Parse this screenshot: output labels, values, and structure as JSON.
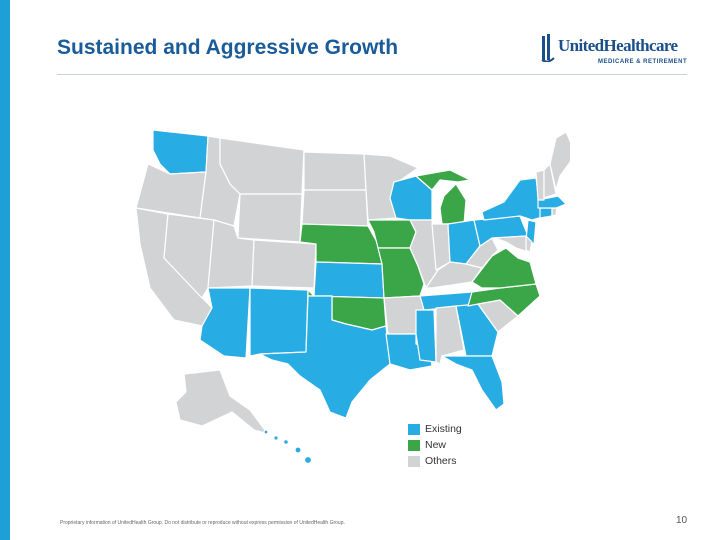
{
  "slide": {
    "title": "Sustained and Aggressive Growth",
    "logo_text": "UnitedHealthcare",
    "logo_subtitle": "MEDICARE & RETIREMENT",
    "footer": "Proprietary information of UnitedHealth Group. Do not distribute or reproduce without express permission of UnitedHealth Group.",
    "page_number": "10"
  },
  "colors": {
    "accent_bar": "#1e9fd8",
    "title": "#1a5b9a",
    "existing": "#27ace3",
    "new": "#3aa648",
    "others": "#d2d3d5"
  },
  "legend": [
    {
      "key": "existing",
      "label": "Existing"
    },
    {
      "key": "new",
      "label": "New"
    },
    {
      "key": "others",
      "label": "Others"
    }
  ],
  "map_data": {
    "states_existing": [
      "WA",
      "KS",
      "AZ",
      "NM",
      "TX",
      "LA",
      "MS",
      "TN",
      "GA",
      "FL",
      "WI",
      "OH",
      "NY",
      "PA",
      "NJ",
      "MA",
      "CT",
      "HI"
    ],
    "states_new": [
      "NE",
      "IA",
      "MO",
      "OK",
      "MI",
      "VA",
      "NC"
    ],
    "states_others": [
      "OR",
      "CA",
      "NV",
      "ID",
      "MT",
      "WY",
      "UT",
      "CO",
      "ND",
      "SD",
      "MN",
      "IL",
      "IN",
      "KY",
      "AR",
      "AL",
      "SC",
      "WV",
      "MD",
      "DE",
      "VT",
      "NH",
      "ME",
      "RI",
      "AK"
    ]
  }
}
